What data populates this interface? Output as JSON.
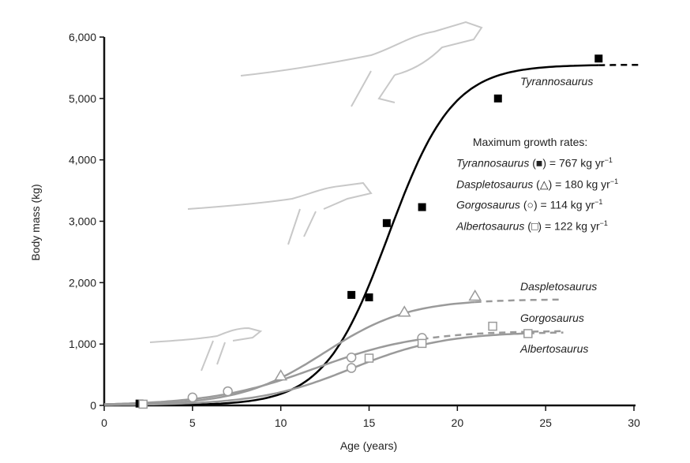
{
  "chart_data": {
    "type": "scatter",
    "title": "",
    "xlabel": "Age (years)",
    "ylabel": "Body mass (kg)",
    "xlim": [
      0,
      30
    ],
    "ylim": [
      0,
      6000
    ],
    "x_ticks": [
      "0",
      "5",
      "10",
      "15",
      "20",
      "25",
      "30"
    ],
    "y_ticks": [
      "0",
      "1,000",
      "2,000",
      "3,000",
      "4,000",
      "5,000",
      "6,000"
    ],
    "grid": false,
    "legend": {
      "title": "Maximum growth rates:",
      "entries": [
        {
          "species": "Tyrannosaurus",
          "marker": "■",
          "rate": "767 kg yr",
          "unit_sup": "−1"
        },
        {
          "species": "Daspletosaurus",
          "marker": "△",
          "rate": "180 kg yr",
          "unit_sup": "−1"
        },
        {
          "species": "Gorgosaurus",
          "marker": "○",
          "rate": "114 kg yr",
          "unit_sup": "−1"
        },
        {
          "species": "Albertosaurus",
          "marker": "□",
          "rate": "122 kg yr",
          "unit_sup": "−1"
        }
      ]
    },
    "series": [
      {
        "name": "Tyrannosaurus",
        "marker": "filled-square",
        "color": "#000000",
        "points": [
          [
            2,
            30
          ],
          [
            14,
            1800
          ],
          [
            15,
            1760
          ],
          [
            16,
            2970
          ],
          [
            18,
            3230
          ],
          [
            22.3,
            5000
          ],
          [
            28,
            5650
          ]
        ],
        "fit_max": 5550
      },
      {
        "name": "Daspletosaurus",
        "marker": "open-triangle",
        "color": "#9a9a9a",
        "points": [
          [
            10,
            480
          ],
          [
            17,
            1520
          ],
          [
            21,
            1780
          ]
        ],
        "fit_max": 1730
      },
      {
        "name": "Gorgosaurus",
        "marker": "open-circle",
        "color": "#9a9a9a",
        "points": [
          [
            5,
            130
          ],
          [
            7,
            230
          ],
          [
            14,
            780
          ],
          [
            14,
            610
          ],
          [
            18,
            1100
          ]
        ],
        "fit_max": 1220
      },
      {
        "name": "Albertosaurus",
        "marker": "open-square",
        "color": "#9a9a9a",
        "points": [
          [
            2.2,
            20
          ],
          [
            15,
            770
          ],
          [
            18,
            1010
          ],
          [
            22,
            1290
          ],
          [
            24,
            1170
          ]
        ],
        "fit_max": 1200
      }
    ]
  }
}
